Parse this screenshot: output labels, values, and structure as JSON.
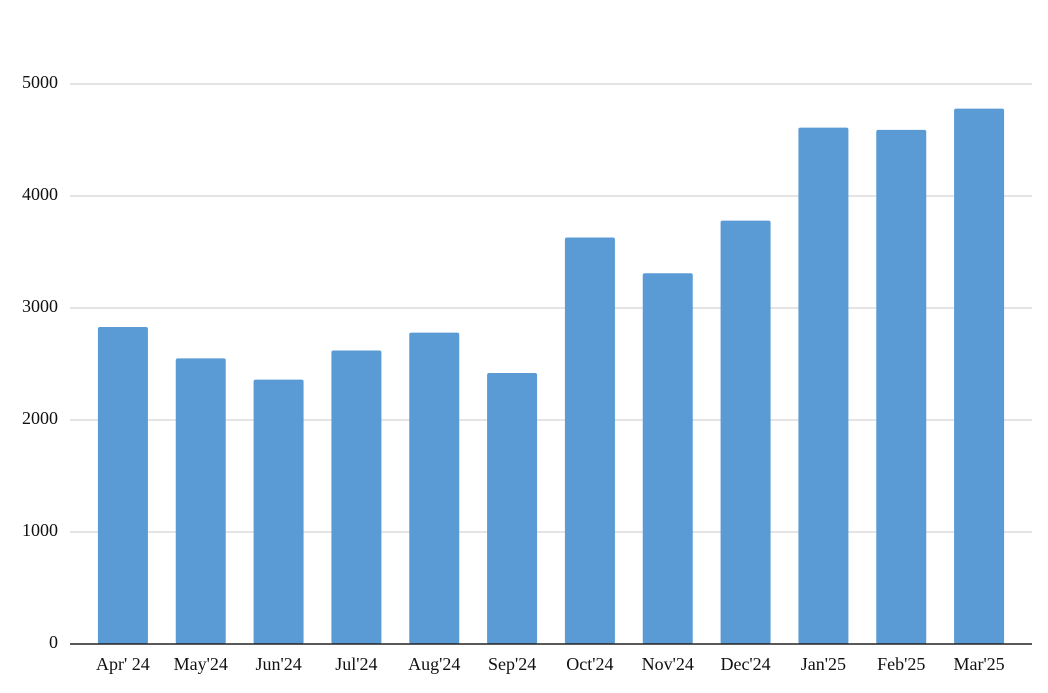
{
  "chart_data": {
    "type": "bar",
    "categories": [
      "Apr' 24",
      "May'24",
      "Jun'24",
      "Jul'24",
      "Aug'24",
      "Sep'24",
      "Oct'24",
      "Nov'24",
      "Dec'24",
      "Jan'25",
      "Feb'25",
      "Mar'25"
    ],
    "values": [
      2830,
      2550,
      2360,
      2620,
      2780,
      2420,
      3630,
      3310,
      3780,
      4610,
      4590,
      4780
    ],
    "color": "#5b9bd5",
    "ylim": [
      0,
      5000
    ],
    "yticks": [
      0,
      1000,
      2000,
      3000,
      4000,
      5000
    ],
    "grid": true
  }
}
